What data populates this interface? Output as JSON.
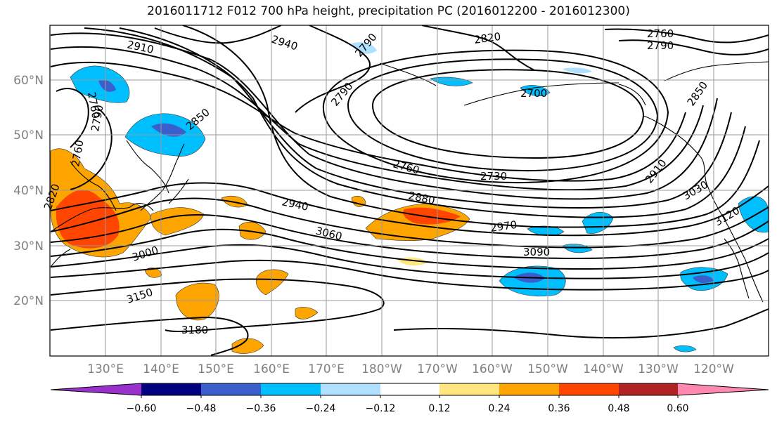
{
  "title": "2016011712 F012 700 hPa height, precipitation PC (2016012200 - 2016012300)",
  "lat_labels": [
    "60°N",
    "50°N",
    "40°N",
    "30°N",
    "20°N"
  ],
  "lon_labels": [
    "130°E",
    "140°E",
    "150°E",
    "160°E",
    "170°E",
    "180°W",
    "170°W",
    "160°W",
    "150°W",
    "140°W",
    "130°W",
    "120°W"
  ],
  "contour_labels": [
    "2910",
    "2940",
    "2820",
    "2760",
    "2790",
    "2760",
    "2790",
    "2850",
    "2790",
    "2760",
    "2790",
    "2700",
    "2850",
    "2820",
    "2760",
    "2730",
    "2910",
    "3030",
    "2880",
    "2940",
    "2970",
    "3060",
    "3090",
    "3120",
    "3000",
    "3150",
    "3180"
  ],
  "colorbar": {
    "ticks": [
      "−0.60",
      "−0.48",
      "−0.36",
      "−0.24",
      "−0.12",
      "0.12",
      "0.24",
      "0.36",
      "0.48",
      "0.60"
    ],
    "colors": [
      "#9932cc",
      "#000080",
      "#3a5fcd",
      "#00bfff",
      "#b0e0ff",
      "#ffffff",
      "#ffe680",
      "#ffa500",
      "#ff4500",
      "#b22222",
      "#ff88b0"
    ]
  }
}
